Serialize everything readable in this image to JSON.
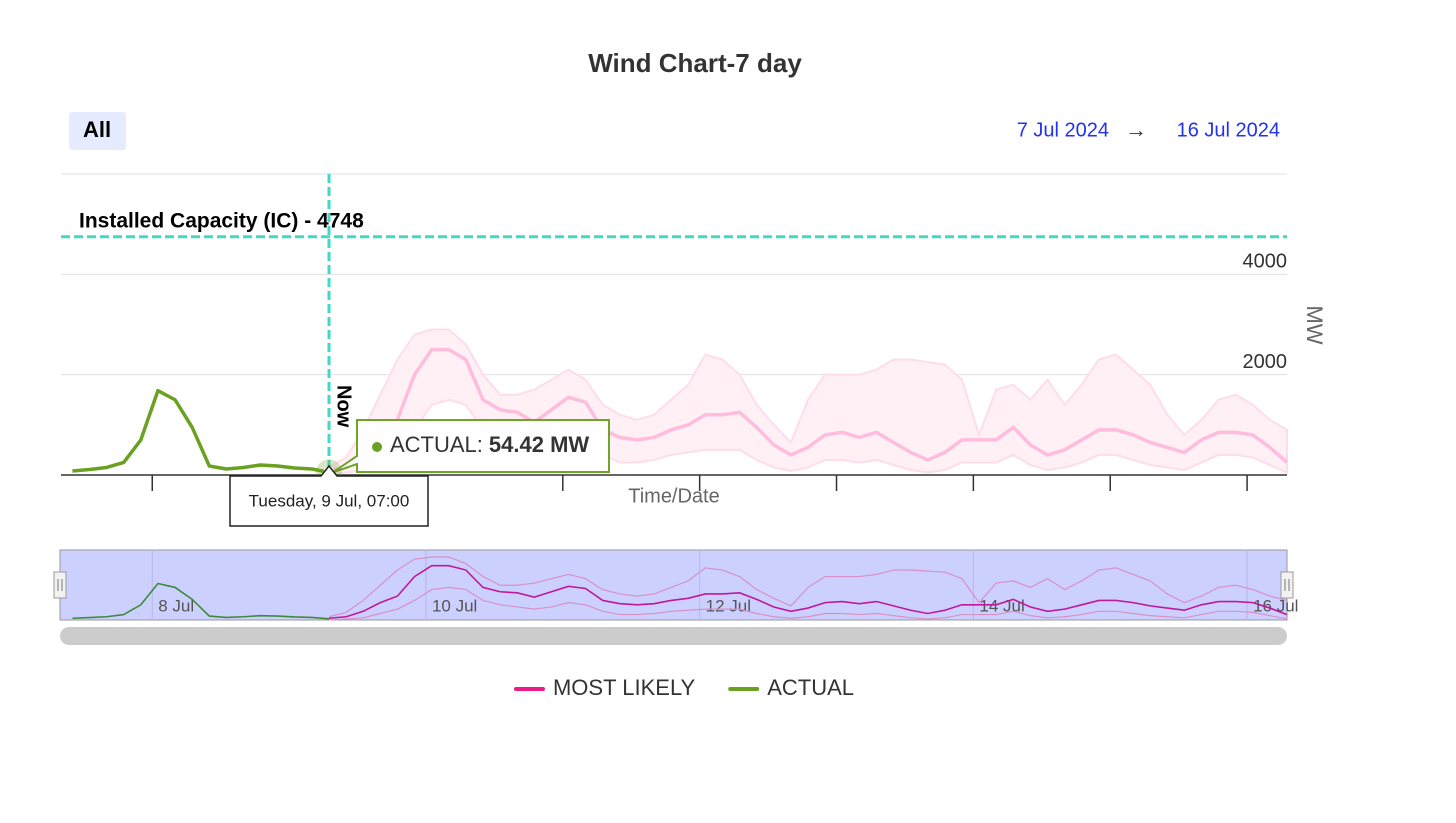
{
  "title": "Wind Chart-7 day",
  "range_button": "All",
  "date_range": {
    "from": "7 Jul 2024",
    "arrow": "→",
    "to": "16 Jul 2024"
  },
  "chart_data": {
    "type": "line",
    "x": [
      "2024-07-07T10:00",
      "2024-07-07T13:00",
      "2024-07-07T16:00",
      "2024-07-07T19:00",
      "2024-07-07T22:00",
      "2024-07-08T01:00",
      "2024-07-08T04:00",
      "2024-07-08T07:00",
      "2024-07-08T10:00",
      "2024-07-08T13:00",
      "2024-07-08T16:00",
      "2024-07-08T19:00",
      "2024-07-08T22:00",
      "2024-07-09T01:00",
      "2024-07-09T04:00",
      "2024-07-09T07:00",
      "2024-07-09T10:00",
      "2024-07-09T13:00",
      "2024-07-09T16:00",
      "2024-07-09T19:00",
      "2024-07-09T22:00",
      "2024-07-10T01:00",
      "2024-07-10T04:00",
      "2024-07-10T07:00",
      "2024-07-10T10:00",
      "2024-07-10T13:00",
      "2024-07-10T16:00",
      "2024-07-10T19:00",
      "2024-07-10T22:00",
      "2024-07-11T01:00",
      "2024-07-11T04:00",
      "2024-07-11T07:00",
      "2024-07-11T10:00",
      "2024-07-11T13:00",
      "2024-07-11T16:00",
      "2024-07-11T19:00",
      "2024-07-11T22:00",
      "2024-07-12T01:00",
      "2024-07-12T04:00",
      "2024-07-12T07:00",
      "2024-07-12T10:00",
      "2024-07-12T13:00",
      "2024-07-12T16:00",
      "2024-07-12T19:00",
      "2024-07-12T22:00",
      "2024-07-13T01:00",
      "2024-07-13T04:00",
      "2024-07-13T07:00",
      "2024-07-13T10:00",
      "2024-07-13T13:00",
      "2024-07-13T16:00",
      "2024-07-13T19:00",
      "2024-07-13T22:00",
      "2024-07-14T01:00",
      "2024-07-14T04:00",
      "2024-07-14T07:00",
      "2024-07-14T10:00",
      "2024-07-14T13:00",
      "2024-07-14T16:00",
      "2024-07-14T19:00",
      "2024-07-14T22:00",
      "2024-07-15T01:00",
      "2024-07-15T04:00",
      "2024-07-15T07:00",
      "2024-07-15T10:00",
      "2024-07-15T13:00",
      "2024-07-15T16:00",
      "2024-07-15T19:00",
      "2024-07-15T22:00",
      "2024-07-16T01:00",
      "2024-07-16T04:00",
      "2024-07-16T07:00"
    ],
    "xlim": [
      "2024-07-07T08:00",
      "2024-07-16T07:00"
    ],
    "xticks": [
      "2024-07-08T00:00",
      "2024-07-09T00:00",
      "2024-07-10T00:00",
      "2024-07-11T00:00",
      "2024-07-12T00:00",
      "2024-07-13T00:00",
      "2024-07-14T00:00",
      "2024-07-15T00:00",
      "2024-07-16T00:00"
    ],
    "ylim": [
      0,
      6000
    ],
    "yticks": [
      0,
      2000,
      4000
    ],
    "grid": true,
    "x_axis_title": "Time/Date",
    "y_axis_title": "MW",
    "series": [
      {
        "name": "MOST LIKELY",
        "color": "#ee1a8a",
        "line_color": "#ffbcdd",
        "values": [
          null,
          null,
          null,
          null,
          null,
          null,
          null,
          null,
          null,
          null,
          null,
          null,
          null,
          null,
          null,
          80,
          150,
          400,
          800,
          1100,
          2000,
          2500,
          2500,
          2300,
          1500,
          1300,
          1250,
          1050,
          1300,
          1550,
          1450,
          900,
          750,
          700,
          750,
          900,
          1000,
          1200,
          1200,
          1250,
          950,
          600,
          400,
          550,
          800,
          850,
          750,
          850,
          650,
          450,
          300,
          450,
          700,
          700,
          700,
          950,
          600,
          400,
          500,
          700,
          900,
          900,
          800,
          650,
          550,
          450,
          700,
          850,
          850,
          800,
          550,
          250
        ],
        "band": {
          "fill": "#fff0f6",
          "stroke": "#ffdcec",
          "low": [
            null,
            null,
            null,
            null,
            null,
            null,
            null,
            null,
            null,
            null,
            null,
            null,
            null,
            null,
            null,
            0,
            50,
            100,
            300,
            500,
            900,
            1400,
            1500,
            1400,
            900,
            700,
            600,
            500,
            600,
            800,
            700,
            400,
            250,
            250,
            300,
            400,
            450,
            500,
            500,
            500,
            300,
            150,
            80,
            150,
            300,
            300,
            250,
            300,
            200,
            100,
            50,
            100,
            250,
            250,
            250,
            400,
            200,
            100,
            150,
            250,
            400,
            400,
            300,
            200,
            150,
            100,
            250,
            400,
            400,
            350,
            200,
            50
          ],
          "high": [
            null,
            null,
            null,
            null,
            null,
            null,
            null,
            null,
            null,
            null,
            null,
            null,
            null,
            null,
            null,
            150,
            350,
            900,
            1600,
            2300,
            2800,
            2900,
            2900,
            2600,
            2000,
            1600,
            1600,
            1700,
            1900,
            2100,
            1900,
            1400,
            1200,
            1100,
            1200,
            1500,
            1800,
            2400,
            2300,
            2000,
            1400,
            1000,
            650,
            1500,
            2000,
            2000,
            2000,
            2100,
            2300,
            2300,
            2250,
            2200,
            1900,
            800,
            1700,
            1800,
            1500,
            1900,
            1400,
            1800,
            2300,
            2400,
            2100,
            1800,
            1200,
            800,
            1100,
            1500,
            1600,
            1400,
            1100,
            900
          ]
        }
      },
      {
        "name": "ACTUAL",
        "color": "#6aa121",
        "values": [
          80,
          110,
          150,
          250,
          700,
          1680,
          1500,
          950,
          180,
          120,
          150,
          200,
          180,
          140,
          120,
          54.42,
          null,
          null,
          null,
          null,
          null,
          null,
          null,
          null,
          null,
          null,
          null,
          null,
          null,
          null,
          null,
          null,
          null,
          null,
          null,
          null,
          null,
          null,
          null,
          null,
          null,
          null,
          null,
          null,
          null,
          null,
          null,
          null,
          null,
          null,
          null,
          null,
          null,
          null,
          null,
          null,
          null,
          null,
          null,
          null,
          null,
          null,
          null,
          null,
          null,
          null,
          null,
          null,
          null,
          null,
          null,
          null
        ]
      }
    ],
    "plot_lines": [
      {
        "value": 4748,
        "label": "Installed Capacity (IC) - 4748",
        "color": "#40d9c8"
      }
    ],
    "now_line": {
      "x": "2024-07-09T07:00",
      "label": "Now",
      "color": "#40d9c8"
    },
    "tooltip": {
      "header": "Tuesday, 9 Jul, 07:00",
      "label": "ACTUAL:",
      "value": "54.42 MW"
    },
    "navigator": {
      "fill": "#ccd0ff",
      "colors": [
        "#c0189a",
        "#3f8a3a"
      ],
      "band_color": "#d890c8",
      "xticks": [
        {
          "value": "2024-07-08T00:00",
          "label": "8 Jul"
        },
        {
          "value": "2024-07-10T00:00",
          "label": "10 Jul"
        },
        {
          "value": "2024-07-12T00:00",
          "label": "12 Jul"
        },
        {
          "value": "2024-07-14T00:00",
          "label": "14 Jul"
        },
        {
          "value": "2024-07-16T00:00",
          "label": "16 Jul"
        }
      ]
    },
    "legend": "bottom"
  }
}
